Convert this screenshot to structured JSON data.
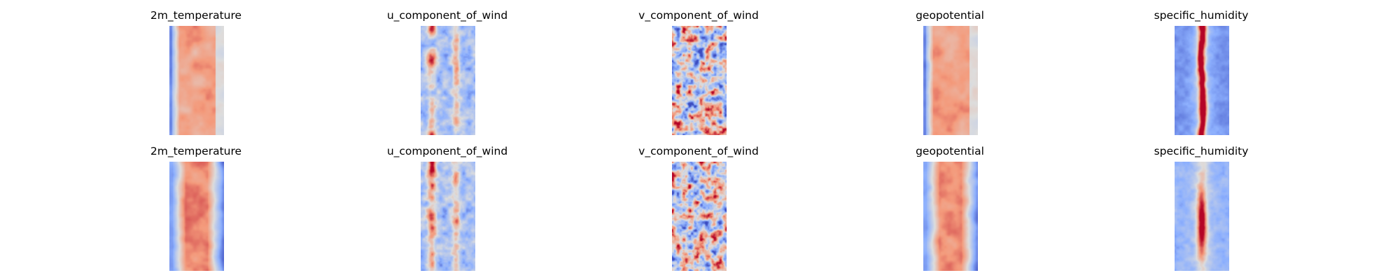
{
  "chart_data": {
    "type": "heatmap",
    "colormap": "coolwarm",
    "colormap_stops": [
      "#3b4cc0",
      "#8db0fe",
      "#dddddd",
      "#f49a7b",
      "#b40426"
    ],
    "axes": "off",
    "grid": false,
    "legend": "none",
    "panels": [
      {
        "title": "2m_temperature",
        "row": 0,
        "col": 0,
        "pattern": "warm_center_band_cool_left_edge"
      },
      {
        "title": "u_component_of_wind",
        "row": 0,
        "col": 1,
        "pattern": "mixed_cool_with_warm_streaks"
      },
      {
        "title": "v_component_of_wind",
        "row": 0,
        "col": 2,
        "pattern": "mixed_blobs"
      },
      {
        "title": "geopotential",
        "row": 0,
        "col": 3,
        "pattern": "warm_center_band_cool_left_edge"
      },
      {
        "title": "specific_humidity",
        "row": 0,
        "col": 4,
        "pattern": "cool_field_dark_red_center_line"
      },
      {
        "title": "2m_temperature",
        "row": 1,
        "col": 0,
        "pattern": "warm_center_band_cool_edges"
      },
      {
        "title": "u_component_of_wind",
        "row": 1,
        "col": 1,
        "pattern": "mixed_cool_with_warm_streaks"
      },
      {
        "title": "v_component_of_wind",
        "row": 1,
        "col": 2,
        "pattern": "mixed_blobs"
      },
      {
        "title": "geopotential",
        "row": 1,
        "col": 3,
        "pattern": "warm_center_band_cool_edges"
      },
      {
        "title": "specific_humidity",
        "row": 1,
        "col": 4,
        "pattern": "cool_field_red_center_patch"
      }
    ]
  }
}
